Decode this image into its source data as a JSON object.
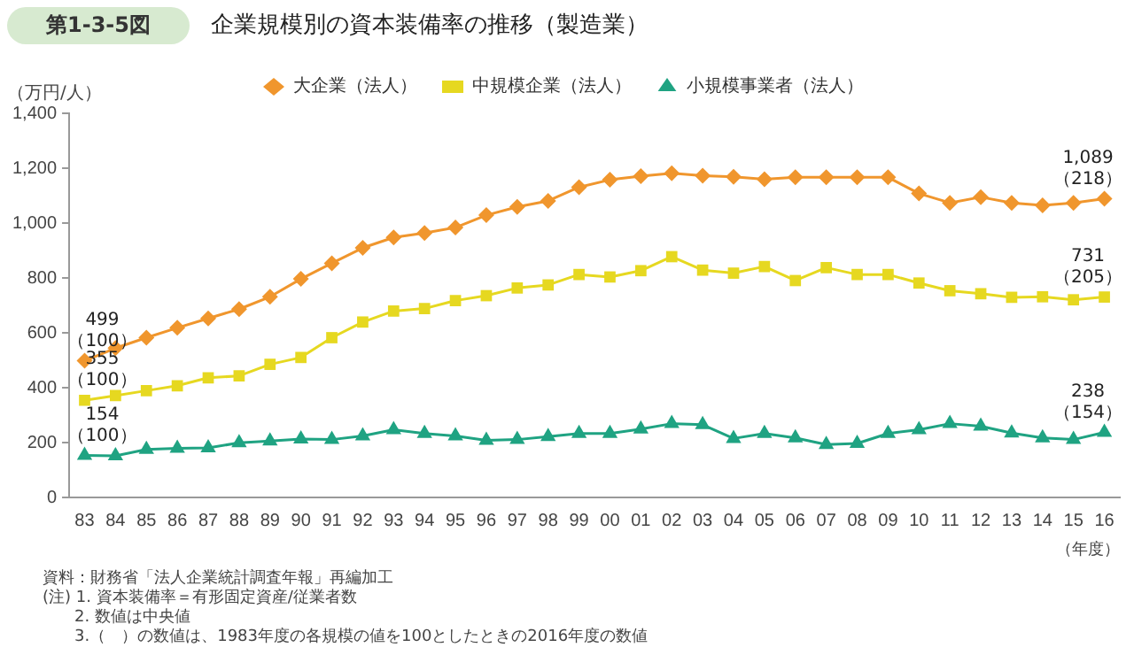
{
  "chart_data": {
    "type": "line",
    "title": "企業規模別の資本装備率の推移（製造業）",
    "ylabel": "（万円/人）",
    "xlabel": "（年度）",
    "categories": [
      "83",
      "84",
      "85",
      "86",
      "87",
      "88",
      "89",
      "90",
      "91",
      "92",
      "93",
      "94",
      "95",
      "96",
      "97",
      "98",
      "99",
      "00",
      "01",
      "02",
      "03",
      "04",
      "05",
      "06",
      "07",
      "08",
      "09",
      "10",
      "11",
      "12",
      "13",
      "14",
      "15",
      "16"
    ],
    "series": [
      {
        "name": "大企業（法人）",
        "color": "#f0962d",
        "marker": "diamond",
        "values": [
          499,
          545,
          583,
          619,
          653,
          687,
          732,
          797,
          854,
          910,
          948,
          964,
          984,
          1029,
          1059,
          1081,
          1131,
          1158,
          1171,
          1182,
          1173,
          1169,
          1160,
          1167,
          1167,
          1167,
          1167,
          1108,
          1074,
          1095,
          1074,
          1065,
          1074,
          1089
        ],
        "value_labels": [
          "499\n（100）",
          null,
          null,
          null,
          null,
          null,
          null,
          null,
          null,
          null,
          null,
          null,
          null,
          null,
          null,
          null,
          null,
          null,
          null,
          null,
          null,
          null,
          null,
          null,
          null,
          null,
          null,
          null,
          null,
          null,
          null,
          null,
          null,
          "1,089\n（218）"
        ]
      },
      {
        "name": "中規模企業（法人）",
        "color": "#e6d820",
        "marker": "square",
        "values": [
          355,
          372,
          390,
          408,
          437,
          444,
          486,
          511,
          583,
          640,
          680,
          689,
          718,
          736,
          764,
          775,
          813,
          804,
          827,
          878,
          829,
          818,
          842,
          791,
          838,
          813,
          813,
          782,
          754,
          743,
          730,
          732,
          721,
          731
        ],
        "value_labels": [
          "355\n（100）",
          null,
          null,
          null,
          null,
          null,
          null,
          null,
          null,
          null,
          null,
          null,
          null,
          null,
          null,
          null,
          null,
          null,
          null,
          null,
          null,
          null,
          null,
          null,
          null,
          null,
          null,
          null,
          null,
          null,
          null,
          null,
          null,
          "731\n（205）"
        ]
      },
      {
        "name": "小規模事業者（法人）",
        "color": "#1fa382",
        "marker": "triangle",
        "values": [
          154,
          153,
          176,
          180,
          182,
          200,
          207,
          214,
          212,
          225,
          248,
          234,
          225,
          209,
          212,
          223,
          234,
          234,
          250,
          270,
          266,
          216,
          234,
          218,
          194,
          198,
          234,
          248,
          270,
          261,
          236,
          218,
          212,
          238
        ],
        "value_labels": [
          "154\n（100）",
          null,
          null,
          null,
          null,
          null,
          null,
          null,
          null,
          null,
          null,
          null,
          null,
          null,
          null,
          null,
          null,
          null,
          null,
          null,
          null,
          null,
          null,
          null,
          null,
          null,
          null,
          null,
          null,
          null,
          null,
          null,
          null,
          "238\n（154）"
        ]
      }
    ],
    "ylim": [
      0,
      1400
    ],
    "yticks": [
      0,
      200,
      400,
      600,
      800,
      {
        "value": 1000,
        "label": "1,000"
      },
      {
        "value": 1200,
        "label": "1,200"
      },
      {
        "value": 1400,
        "label": "1,400"
      }
    ],
    "grid": false,
    "legend": "top",
    "line_style": "solid",
    "annotations": [
      "第1-3-5図",
      "資料：財務省「法人企業統計調査年報」再編加工",
      "(注) 1. 資本装備率＝有形固定資産/従業者数",
      "2. 数値は中央値",
      "3.（　）の数値は、1983年度の各規模の値を100としたときの2016年度の数値"
    ]
  }
}
